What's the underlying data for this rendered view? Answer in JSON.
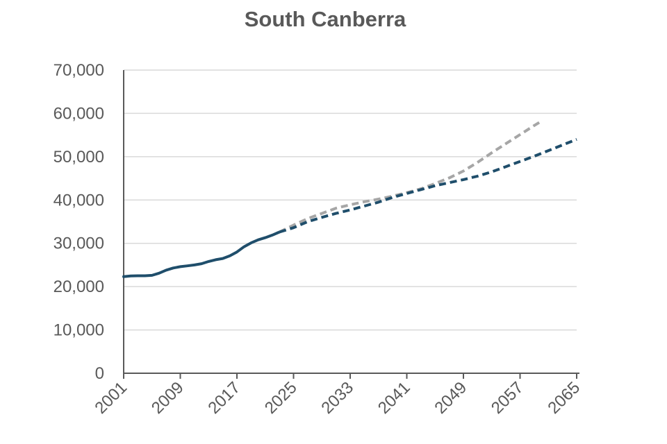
{
  "chart_data": {
    "type": "line",
    "title": "South Canberra",
    "xlabel": "",
    "ylabel": "",
    "xlim": [
      2001,
      2065
    ],
    "ylim": [
      0,
      70000
    ],
    "x_ticks": [
      2001,
      2009,
      2017,
      2025,
      2033,
      2041,
      2049,
      2057,
      2065
    ],
    "y_ticks": [
      0,
      10000,
      20000,
      30000,
      40000,
      50000,
      60000,
      70000
    ],
    "y_tick_labels": [
      "0",
      "10,000",
      "20,000",
      "30,000",
      "40,000",
      "50,000",
      "60,000",
      "70,000"
    ],
    "x_tick_labels": [
      "2001",
      "2009",
      "2017",
      "2025",
      "2033",
      "2041",
      "2049",
      "2057",
      "2065"
    ],
    "grid": "horizontal",
    "legend": "none",
    "series": [
      {
        "style": "solid",
        "color": "#1F4E6B",
        "x": [
          2001,
          2002,
          2003,
          2004,
          2005,
          2006,
          2007,
          2008,
          2009,
          2010,
          2011,
          2012,
          2013,
          2014,
          2015,
          2016,
          2017,
          2018,
          2019,
          2020,
          2021,
          2022,
          2023
        ],
        "y": [
          22300,
          22450,
          22500,
          22500,
          22600,
          23100,
          23800,
          24300,
          24600,
          24800,
          25000,
          25300,
          25800,
          26200,
          26500,
          27100,
          28000,
          29200,
          30100,
          30800,
          31300,
          31900,
          32600
        ]
      },
      {
        "style": "dashed",
        "color": "#A6A6A6",
        "x": [
          2023,
          2025,
          2027,
          2029,
          2031,
          2033,
          2035,
          2037,
          2039,
          2041,
          2043,
          2045,
          2047,
          2049,
          2051,
          2053,
          2055,
          2057,
          2059,
          2060
        ],
        "y": [
          32600,
          34200,
          35700,
          36900,
          38100,
          38900,
          39600,
          40200,
          40900,
          41700,
          42600,
          43800,
          45100,
          46700,
          48700,
          50900,
          53000,
          55100,
          57200,
          58200
        ]
      },
      {
        "style": "dashed",
        "color": "#1F4E6B",
        "x": [
          2023,
          2025,
          2027,
          2029,
          2031,
          2033,
          2035,
          2037,
          2039,
          2041,
          2043,
          2045,
          2047,
          2049,
          2051,
          2053,
          2055,
          2057,
          2059,
          2061,
          2063,
          2065
        ],
        "y": [
          32600,
          33600,
          35000,
          36000,
          36900,
          37700,
          38600,
          39500,
          40600,
          41500,
          42400,
          43300,
          44000,
          44700,
          45500,
          46500,
          47700,
          48900,
          50100,
          51400,
          52700,
          54000
        ]
      }
    ]
  }
}
